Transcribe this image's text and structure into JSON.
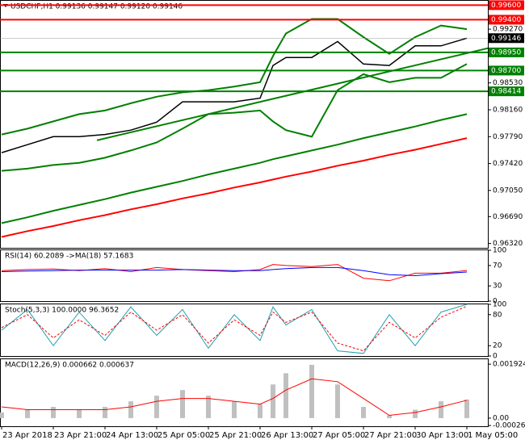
{
  "chart_data": [
    {
      "type": "line",
      "title": "USDCHF,H1  0.99136 0.99147 0.99120 0.99146",
      "x": [
        0,
        8,
        16,
        24,
        32,
        40,
        48,
        56,
        64,
        72,
        80,
        84,
        88,
        96,
        104,
        112,
        120,
        128,
        136,
        144
      ],
      "xlim": [
        0,
        150
      ],
      "ylim": [
        0.9626,
        0.9966
      ],
      "series": [
        {
          "color": "#ff0000",
          "width": 2,
          "values": [
            0.9641,
            0.9649,
            0.9656,
            0.9664,
            0.9671,
            0.9679,
            0.9686,
            0.9694,
            0.9701,
            0.9709,
            0.9716,
            0.972,
            0.9724,
            0.9731,
            0.9739,
            0.9746,
            0.9754,
            0.9761,
            0.9769,
            0.9777
          ]
        },
        {
          "color": "#008000",
          "width": 2,
          "values": [
            0.966,
            0.9668,
            0.9677,
            0.9685,
            0.9693,
            0.9702,
            0.971,
            0.9718,
            0.9727,
            0.9735,
            0.9743,
            0.9748,
            0.9752,
            0.976,
            0.9768,
            0.9777,
            0.9785,
            0.9793,
            0.9802,
            0.981
          ]
        },
        {
          "color": "#008000",
          "width": 2,
          "values": [
            0.9782,
            0.979,
            0.98,
            0.981,
            0.9815,
            0.9825,
            0.9834,
            0.984,
            0.9843,
            0.9848,
            0.9854,
            0.989,
            0.9921,
            0.9941,
            0.9941,
            0.9916,
            0.9893,
            0.9916,
            0.9932,
            0.9927
          ]
        },
        {
          "color": "#008000",
          "width": 2,
          "values": [
            0.9732,
            0.9735,
            0.974,
            0.9743,
            0.975,
            0.976,
            0.9771,
            0.979,
            0.981,
            0.9812,
            0.9815,
            0.98,
            0.9788,
            0.9779,
            0.9843,
            0.9865,
            0.9854,
            0.986,
            0.986,
            0.9879
          ]
        },
        {
          "color": "#000000",
          "width": 1.5,
          "values": [
            0.9757,
            0.9768,
            0.9779,
            0.9779,
            0.9782,
            0.9788,
            0.9799,
            0.9827,
            0.9827,
            0.9827,
            0.9832,
            0.9877,
            0.9888,
            0.9888,
            0.991,
            0.9879,
            0.9877,
            0.9904,
            0.9904,
            0.99146
          ]
        }
      ],
      "trendlines": [
        {
          "x": [
            29.5,
            150.75
          ],
          "values": [
            0.9774,
            0.9901
          ],
          "color": "#008000"
        }
      ],
      "levels": [
        {
          "value": 0.996,
          "label": "0.99600",
          "color": "#ff0000"
        },
        {
          "value": 0.994,
          "label": "0.99400",
          "color": "#ff0000"
        },
        {
          "value": 0.9895,
          "label": "0.98950",
          "color": "#008000"
        },
        {
          "value": 0.987,
          "label": "0.98700",
          "color": "#008000"
        },
        {
          "value": 0.98414,
          "label": "0.98414",
          "color": "#008000"
        }
      ],
      "current": {
        "value": 0.99146,
        "label": "0.99146",
        "color": "#000000"
      },
      "yticks": [
        {
          "value": 0.9927,
          "label": "0.99270"
        },
        {
          "value": 0.9853,
          "label": "0.98530"
        },
        {
          "value": 0.9816,
          "label": "0.98160"
        },
        {
          "value": 0.9779,
          "label": "0.97790"
        },
        {
          "value": 0.9742,
          "label": "0.97420"
        },
        {
          "value": 0.9705,
          "label": "0.97050"
        },
        {
          "value": 0.9669,
          "label": "0.96690"
        },
        {
          "value": 0.9632,
          "label": "0.96320"
        }
      ]
    },
    {
      "type": "line",
      "title": "RSI(14) 60.2089 ->MA(18) 57.1683",
      "x": [
        0,
        8,
        16,
        24,
        32,
        40,
        48,
        56,
        64,
        72,
        80,
        84,
        88,
        96,
        104,
        112,
        120,
        128,
        136,
        144
      ],
      "xlim": [
        0,
        150
      ],
      "ylim": [
        0,
        100
      ],
      "yticks": [
        100,
        70,
        30,
        0
      ],
      "series": [
        {
          "color": "#ff0000",
          "width": 1,
          "values": [
            60,
            62,
            63,
            60,
            64,
            58,
            66,
            62,
            60,
            58,
            62,
            72,
            70,
            68,
            72,
            45,
            40,
            55,
            55,
            60.2089
          ]
        },
        {
          "color": "#0000ff",
          "width": 1,
          "values": [
            58,
            59,
            60,
            61,
            61,
            61,
            61,
            62,
            61,
            60,
            60,
            62,
            64,
            66,
            66,
            60,
            52,
            50,
            54,
            57.1683
          ]
        }
      ]
    },
    {
      "type": "line",
      "title": "Stoch(5,3,3) 100.0000 96.3652",
      "x": [
        0,
        8,
        16,
        24,
        32,
        40,
        48,
        56,
        64,
        72,
        80,
        84,
        88,
        96,
        104,
        112,
        120,
        128,
        136,
        144
      ],
      "xlim": [
        0,
        150
      ],
      "ylim": [
        0,
        100
      ],
      "yticks": [
        100,
        80,
        20,
        0
      ],
      "series": [
        {
          "color": "#20a0b0",
          "width": 1,
          "values": [
            50,
            90,
            20,
            85,
            30,
            95,
            40,
            90,
            15,
            80,
            30,
            95,
            60,
            90,
            10,
            5,
            80,
            20,
            85,
            100
          ]
        },
        {
          "color": "#ff0000",
          "width": 1,
          "dashed": true,
          "values": [
            55,
            80,
            35,
            70,
            40,
            85,
            50,
            80,
            25,
            70,
            40,
            85,
            65,
            85,
            25,
            10,
            65,
            35,
            75,
            96.3652
          ]
        }
      ]
    },
    {
      "type": "combo",
      "title": "MACD(12,26,9) 0.000662 0.000637",
      "x": [
        0,
        8,
        16,
        24,
        32,
        40,
        48,
        56,
        64,
        72,
        80,
        84,
        88,
        96,
        104,
        112,
        120,
        128,
        136,
        144
      ],
      "xlim": [
        0,
        150
      ],
      "ylim": [
        -0.00029,
        0.0021
      ],
      "yticks": [
        0.001924,
        {
          "value": 0,
          "label": "0.00"
        },
        -0.000264
      ],
      "xticks": [
        {
          "value": 0,
          "label": "23 Apr 2018"
        },
        {
          "value": 16,
          "label": "23 Apr 21:00"
        },
        {
          "value": 32,
          "label": "24 Apr 13:00"
        },
        {
          "value": 48,
          "label": "25 Apr 05:00"
        },
        {
          "value": 64,
          "label": "25 Apr 21:00"
        },
        {
          "value": 80,
          "label": "26 Apr 13:00"
        },
        {
          "value": 96,
          "label": "27 Apr 05:00"
        },
        {
          "value": 112,
          "label": "27 Apr 21:00"
        },
        {
          "value": 128,
          "label": "30 Apr 13:00"
        },
        {
          "value": 144,
          "label": "1 May 05:00"
        }
      ],
      "series": [
        {
          "kind": "bar",
          "color": "#c0c0c0",
          "values": [
            0.0002,
            0.0003,
            0.0004,
            0.0003,
            0.0004,
            0.0006,
            0.0008,
            0.001,
            0.0008,
            0.0006,
            0.0005,
            0.0012,
            0.0016,
            0.0019,
            0.0012,
            0.0004,
            0.0001,
            0.0003,
            0.0006,
            0.000662
          ]
        },
        {
          "kind": "line",
          "color": "#ff0000",
          "width": 1,
          "values": [
            0.0004,
            0.0003,
            0.0003,
            0.0003,
            0.0003,
            0.0004,
            0.0006,
            0.0007,
            0.0007,
            0.0006,
            0.0005,
            0.0007,
            0.001,
            0.0014,
            0.0013,
            0.0007,
            0.0001,
            0.0002,
            0.0004,
            0.000637
          ]
        }
      ]
    }
  ]
}
